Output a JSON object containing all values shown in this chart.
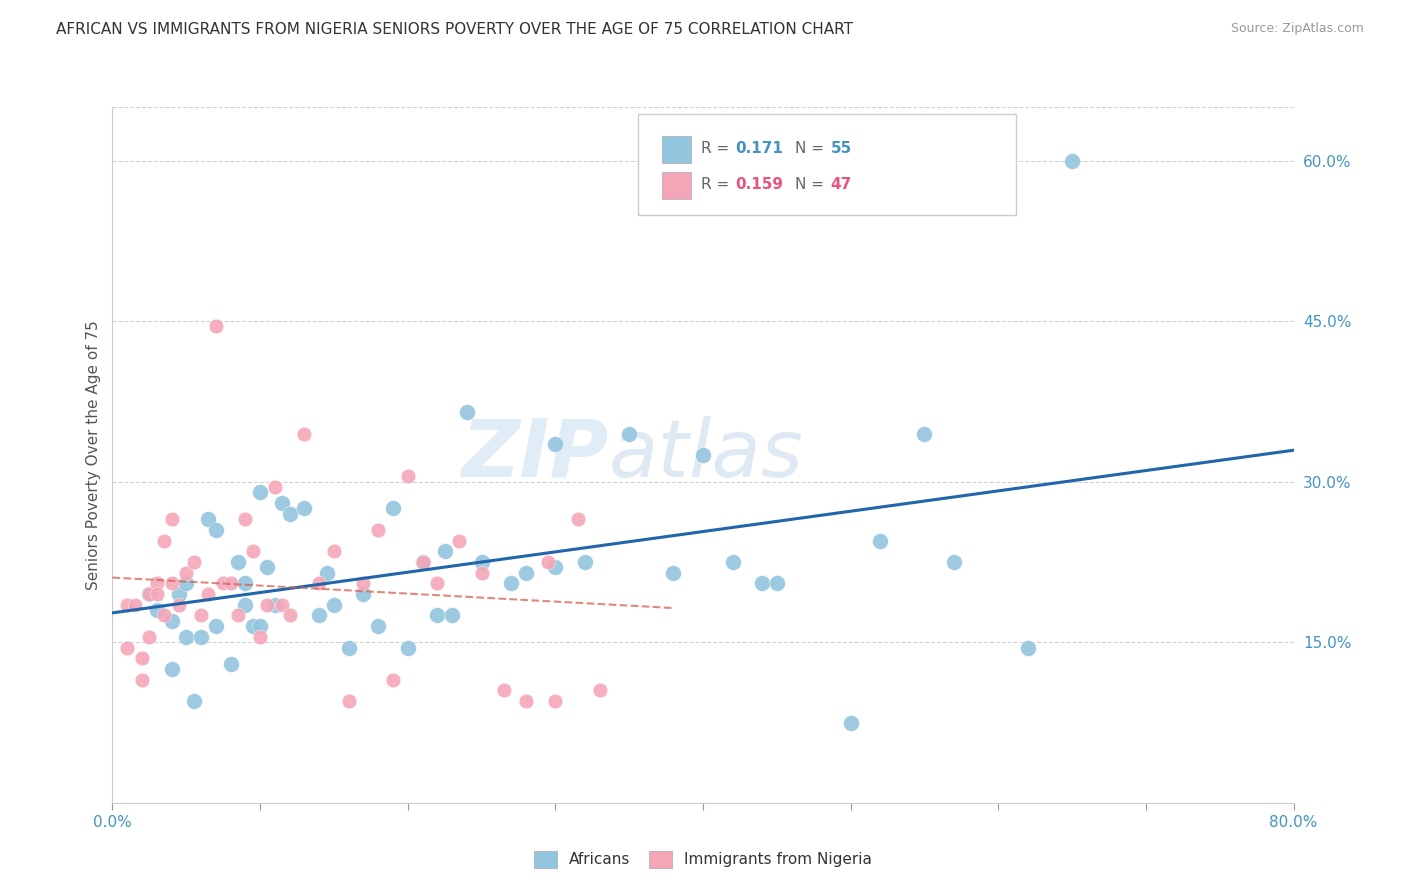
{
  "title": "AFRICAN VS IMMIGRANTS FROM NIGERIA SENIORS POVERTY OVER THE AGE OF 75 CORRELATION CHART",
  "source": "Source: ZipAtlas.com",
  "ylabel": "Seniors Poverty Over the Age of 75",
  "xlim": [
    0.0,
    0.8
  ],
  "ylim": [
    0.0,
    0.65
  ],
  "xticks": [
    0.0,
    0.1,
    0.2,
    0.3,
    0.4,
    0.5,
    0.6,
    0.7,
    0.8
  ],
  "xticklabels": [
    "0.0%",
    "",
    "",
    "",
    "",
    "",
    "",
    "",
    "80.0%"
  ],
  "yticks_right": [
    0.0,
    0.15,
    0.3,
    0.45,
    0.6
  ],
  "yticklabels_right": [
    "",
    "15.0%",
    "30.0%",
    "45.0%",
    "60.0%"
  ],
  "color_blue": "#92c5de",
  "color_pink": "#f4a6b8",
  "color_blue_text": "#4393c3",
  "color_pink_text": "#e8537a",
  "color_line_blue": "#2166ac",
  "color_line_pink": "#d6604d",
  "watermark_zip": "ZIP",
  "watermark_atlas": "atlas",
  "africans_x": [
    0.025,
    0.03,
    0.04,
    0.04,
    0.045,
    0.05,
    0.05,
    0.055,
    0.06,
    0.065,
    0.07,
    0.07,
    0.08,
    0.085,
    0.09,
    0.09,
    0.095,
    0.1,
    0.1,
    0.105,
    0.11,
    0.115,
    0.12,
    0.13,
    0.14,
    0.145,
    0.15,
    0.16,
    0.17,
    0.18,
    0.19,
    0.2,
    0.21,
    0.22,
    0.225,
    0.23,
    0.24,
    0.25,
    0.27,
    0.28,
    0.3,
    0.32,
    0.35,
    0.38,
    0.4,
    0.42,
    0.44,
    0.45,
    0.5,
    0.52,
    0.55,
    0.57,
    0.62,
    0.65,
    0.3
  ],
  "africans_y": [
    0.195,
    0.18,
    0.17,
    0.125,
    0.195,
    0.205,
    0.155,
    0.095,
    0.155,
    0.265,
    0.165,
    0.255,
    0.13,
    0.225,
    0.185,
    0.205,
    0.165,
    0.29,
    0.165,
    0.22,
    0.185,
    0.28,
    0.27,
    0.275,
    0.175,
    0.215,
    0.185,
    0.145,
    0.195,
    0.165,
    0.275,
    0.145,
    0.225,
    0.175,
    0.235,
    0.175,
    0.365,
    0.225,
    0.205,
    0.215,
    0.335,
    0.225,
    0.345,
    0.215,
    0.325,
    0.225,
    0.205,
    0.205,
    0.075,
    0.245,
    0.345,
    0.225,
    0.145,
    0.6,
    0.22
  ],
  "nigeria_x": [
    0.01,
    0.01,
    0.015,
    0.02,
    0.02,
    0.025,
    0.025,
    0.03,
    0.03,
    0.035,
    0.035,
    0.04,
    0.04,
    0.045,
    0.05,
    0.055,
    0.06,
    0.065,
    0.07,
    0.075,
    0.08,
    0.085,
    0.09,
    0.095,
    0.1,
    0.105,
    0.11,
    0.115,
    0.12,
    0.13,
    0.14,
    0.15,
    0.16,
    0.17,
    0.18,
    0.19,
    0.2,
    0.21,
    0.22,
    0.235,
    0.25,
    0.265,
    0.28,
    0.295,
    0.3,
    0.315,
    0.33
  ],
  "nigeria_y": [
    0.185,
    0.145,
    0.185,
    0.135,
    0.115,
    0.195,
    0.155,
    0.205,
    0.195,
    0.245,
    0.175,
    0.265,
    0.205,
    0.185,
    0.215,
    0.225,
    0.175,
    0.195,
    0.445,
    0.205,
    0.205,
    0.175,
    0.265,
    0.235,
    0.155,
    0.185,
    0.295,
    0.185,
    0.175,
    0.345,
    0.205,
    0.235,
    0.095,
    0.205,
    0.255,
    0.115,
    0.305,
    0.225,
    0.205,
    0.245,
    0.215,
    0.105,
    0.095,
    0.225,
    0.095,
    0.265,
    0.105
  ]
}
